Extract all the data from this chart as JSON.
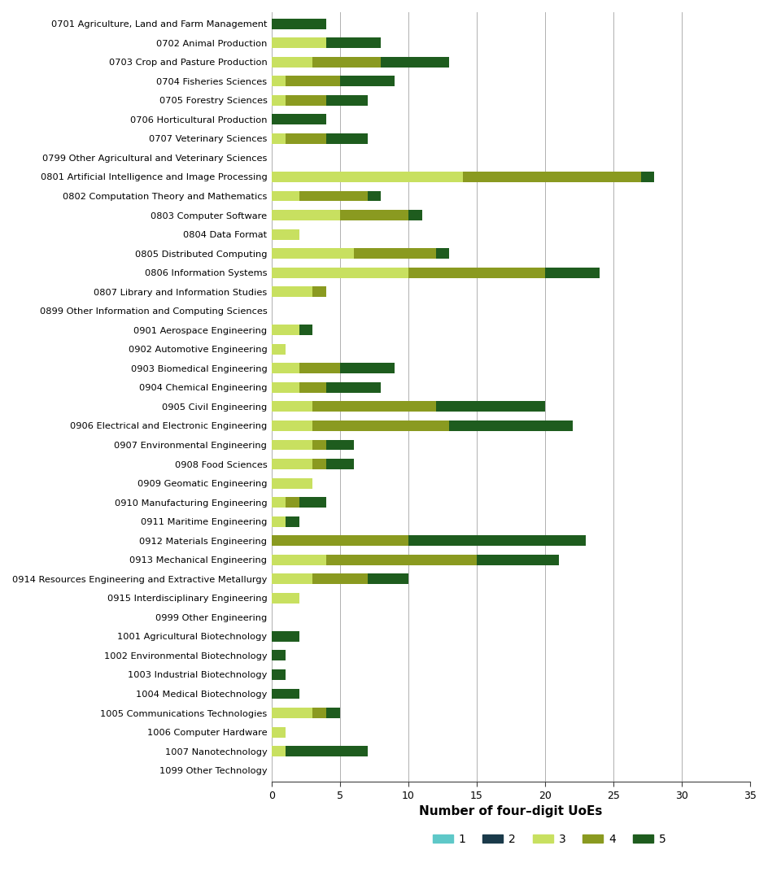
{
  "categories": [
    "0701 Agriculture, Land and Farm Management",
    "0702 Animal Production",
    "0703 Crop and Pasture Production",
    "0704 Fisheries Sciences",
    "0705 Forestry Sciences",
    "0706 Horticultural Production",
    "0707 Veterinary Sciences",
    "0799 Other Agricultural and Veterinary Sciences",
    "0801 Artificial Intelligence and Image Processing",
    "0802 Computation Theory and Mathematics",
    "0803 Computer Software",
    "0804 Data Format",
    "0805 Distributed Computing",
    "0806 Information Systems",
    "0807 Library and Information Studies",
    "0899 Other Information and Computing Sciences",
    "0901 Aerospace Engineering",
    "0902 Automotive Engineering",
    "0903 Biomedical Engineering",
    "0904 Chemical Engineering",
    "0905 Civil Engineering",
    "0906 Electrical and Electronic Engineering",
    "0907 Environmental Engineering",
    "0908 Food Sciences",
    "0909 Geomatic Engineering",
    "0910 Manufacturing Engineering",
    "0911 Maritime Engineering",
    "0912 Materials Engineering",
    "0913 Mechanical Engineering",
    "0914 Resources Engineering and Extractive Metallurgy",
    "0915 Interdisciplinary Engineering",
    "0999 Other Engineering",
    "1001 Agricultural Biotechnology",
    "1002 Environmental Biotechnology",
    "1003 Industrial Biotechnology",
    "1004 Medical Biotechnology",
    "1005 Communications Technologies",
    "1006 Computer Hardware",
    "1007 Nanotechnology",
    "1099 Other Technology"
  ],
  "values_1": [
    0,
    0,
    0,
    0,
    0,
    0,
    0,
    0,
    0,
    0,
    0,
    0,
    0,
    0,
    0,
    0,
    0,
    0,
    0,
    0,
    0,
    0,
    0,
    0,
    0,
    0,
    0,
    0,
    0,
    0,
    0,
    0,
    0,
    0,
    0,
    0,
    0,
    0,
    0,
    0
  ],
  "values_2": [
    0,
    0,
    0,
    0,
    0,
    0,
    0,
    0,
    0,
    0,
    0,
    0,
    0,
    0,
    0,
    0,
    0,
    0,
    0,
    0,
    0,
    0,
    0,
    0,
    0,
    0,
    0,
    0,
    0,
    0,
    0,
    0,
    0,
    0,
    0,
    0,
    0,
    0,
    0,
    0
  ],
  "values_3": [
    0,
    4,
    3,
    1,
    1,
    0,
    1,
    0,
    14,
    2,
    5,
    2,
    6,
    10,
    3,
    0,
    2,
    1,
    2,
    2,
    3,
    3,
    3,
    3,
    3,
    1,
    1,
    0,
    4,
    3,
    2,
    0,
    0,
    0,
    0,
    0,
    3,
    1,
    1,
    0
  ],
  "values_4": [
    0,
    0,
    5,
    4,
    3,
    0,
    3,
    0,
    13,
    5,
    5,
    0,
    6,
    10,
    1,
    0,
    0,
    0,
    3,
    2,
    9,
    10,
    1,
    1,
    0,
    1,
    0,
    10,
    11,
    4,
    0,
    0,
    0,
    0,
    0,
    0,
    1,
    0,
    0,
    0
  ],
  "values_5": [
    4,
    4,
    5,
    4,
    3,
    4,
    3,
    0,
    1,
    1,
    1,
    0,
    1,
    4,
    0,
    0,
    1,
    0,
    4,
    4,
    8,
    9,
    2,
    2,
    0,
    2,
    1,
    13,
    6,
    3,
    0,
    0,
    2,
    1,
    1,
    2,
    1,
    0,
    6,
    0
  ],
  "colors": {
    "1": "#5ec8c8",
    "2": "#1a3a4a",
    "3": "#c8e060",
    "4": "#8a9a20",
    "5": "#1e5c1e"
  },
  "xlabel": "Number of four–digit UoEs",
  "xlim": [
    0,
    35
  ],
  "xticks": [
    0,
    5,
    10,
    15,
    20,
    25,
    30,
    35
  ],
  "legend_labels": [
    "1",
    "2",
    "3",
    "4",
    "5"
  ],
  "background_color": "#ffffff",
  "bar_height": 0.55,
  "label_fontsize": 8.2,
  "tick_fontsize": 9,
  "axis_fontsize": 11
}
